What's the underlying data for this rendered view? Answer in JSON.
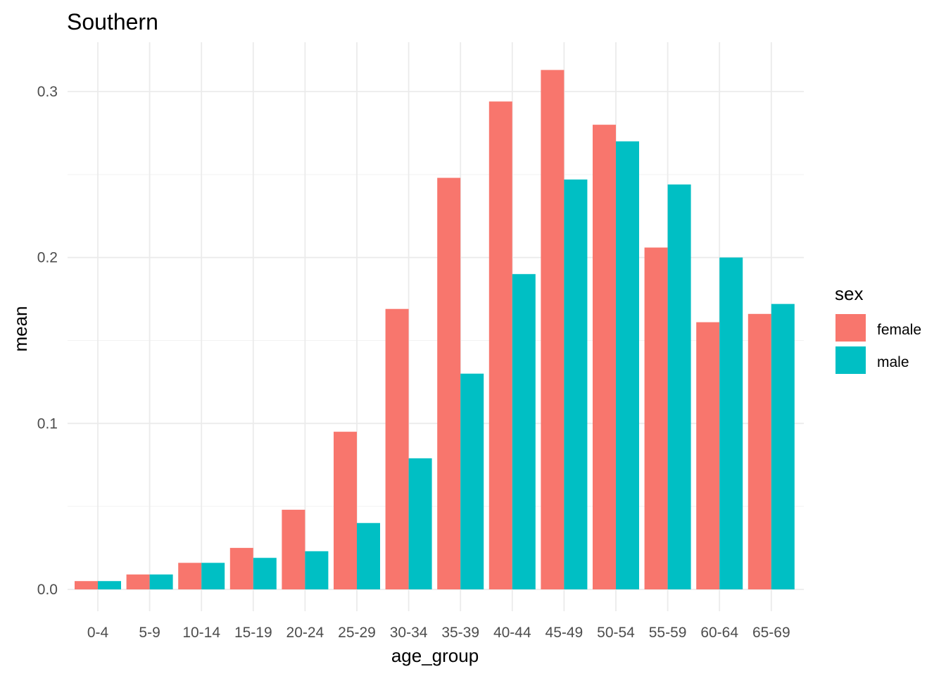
{
  "chart_data": {
    "type": "bar",
    "title": "Southern",
    "xlabel": "age_group",
    "ylabel": "mean",
    "categories": [
      "0-4",
      "5-9",
      "10-14",
      "15-19",
      "20-24",
      "25-29",
      "30-34",
      "35-39",
      "40-44",
      "45-49",
      "50-54",
      "55-59",
      "60-64",
      "65-69"
    ],
    "series": [
      {
        "name": "female",
        "color": "#F8766D",
        "values": [
          0.005,
          0.009,
          0.016,
          0.025,
          0.048,
          0.095,
          0.169,
          0.248,
          0.294,
          0.313,
          0.28,
          0.206,
          0.161,
          0.166
        ]
      },
      {
        "name": "male",
        "color": "#00BFC4",
        "values": [
          0.005,
          0.009,
          0.016,
          0.019,
          0.023,
          0.04,
          0.079,
          0.13,
          0.19,
          0.247,
          0.27,
          0.244,
          0.2,
          0.172
        ]
      }
    ],
    "ylim": [
      0,
      0.33
    ],
    "yticks": [
      0.0,
      0.1,
      0.2,
      0.3
    ],
    "ytick_labels": [
      "0.0",
      "0.1",
      "0.2",
      "0.3"
    ],
    "grid": true,
    "legend": {
      "title": "sex",
      "position": "right"
    }
  }
}
